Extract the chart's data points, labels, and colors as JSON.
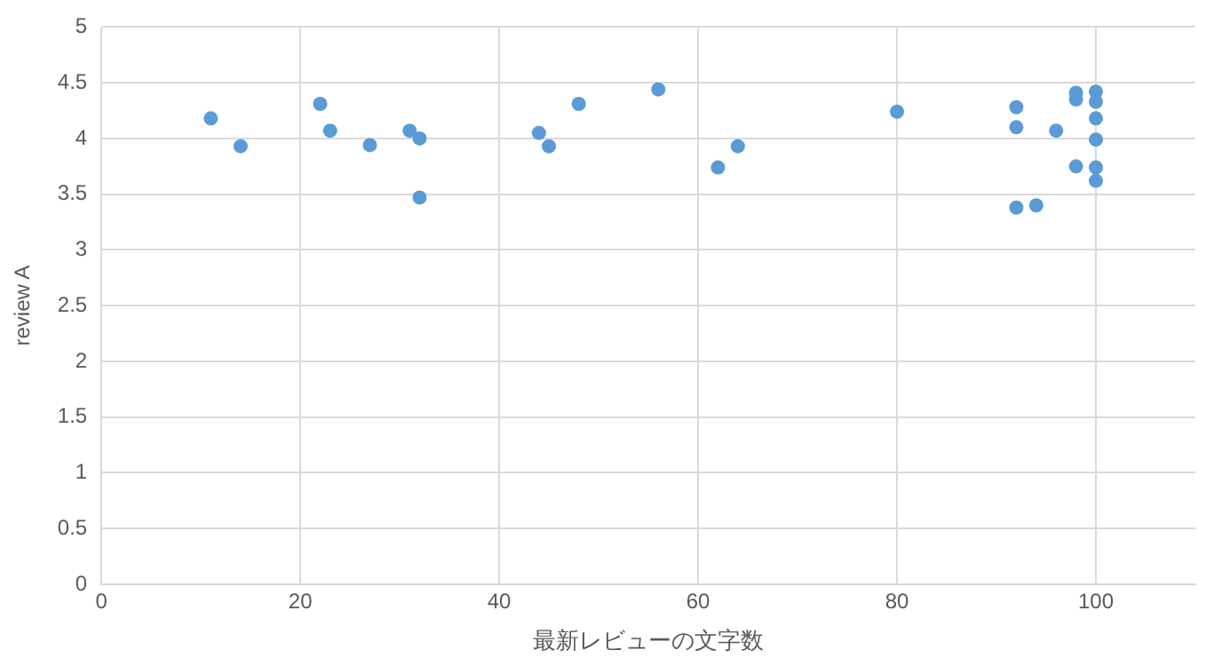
{
  "chart_data": {
    "type": "scatter",
    "xlabel": "最新レビューの文字数",
    "ylabel": "review A",
    "x": [
      11,
      14,
      22,
      23,
      27,
      31,
      32,
      32,
      44,
      45,
      48,
      56,
      62,
      64,
      80,
      92,
      92,
      92,
      94,
      96,
      98,
      98,
      98,
      100,
      100,
      100,
      100,
      100,
      100
    ],
    "series": [
      {
        "color": "#5b9bd5",
        "values": [
          4.18,
          3.93,
          4.31,
          4.07,
          3.94,
          4.07,
          4.0,
          3.47,
          4.05,
          3.93,
          4.31,
          4.44,
          3.74,
          3.93,
          4.24,
          4.28,
          4.1,
          3.38,
          3.4,
          4.07,
          4.41,
          4.35,
          3.75,
          4.42,
          4.33,
          4.18,
          3.99,
          3.74,
          3.62
        ]
      }
    ],
    "xlim": [
      0,
      110
    ],
    "xticks": [
      0,
      20,
      40,
      60,
      80,
      100
    ],
    "ylim": [
      0,
      5
    ],
    "yticks": [
      0,
      0.5,
      1,
      1.5,
      2,
      2.5,
      3,
      3.5,
      4,
      4.5,
      5
    ],
    "grid": true,
    "marker": "circle",
    "legend": false
  }
}
